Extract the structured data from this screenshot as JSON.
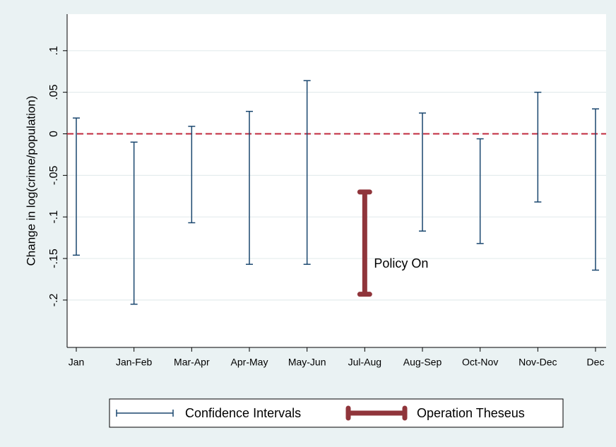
{
  "chart_data": {
    "type": "range",
    "ylabel": "Change in log(crime/population)",
    "categories": [
      "Jan",
      "Jan-Feb",
      "Mar-Apr",
      "Apr-May",
      "May-Jun",
      "Jul-Aug",
      "Aug-Sep",
      "Oct-Nov",
      "Nov-Dec",
      "Dec"
    ],
    "series": [
      {
        "name": "Confidence Intervals",
        "color": "#1a476f",
        "low": [
          -0.146,
          -0.205,
          -0.107,
          -0.157,
          -0.157,
          null,
          -0.117,
          -0.132,
          -0.082,
          -0.164
        ],
        "high": [
          0.019,
          -0.01,
          0.009,
          0.027,
          0.064,
          null,
          0.025,
          -0.006,
          0.05,
          0.03
        ]
      },
      {
        "name": "Operation Theseus",
        "color": "#90353b",
        "low": [
          null,
          null,
          null,
          null,
          null,
          -0.193,
          null,
          null,
          null,
          null
        ],
        "high": [
          null,
          null,
          null,
          null,
          null,
          -0.07,
          null,
          null,
          null,
          null
        ]
      }
    ],
    "annotation": "Policy On",
    "refline": 0,
    "refline_color": "#c0283c",
    "ylim": [
      -0.257,
      0.144
    ],
    "yticks": [
      {
        "value": -0.2,
        "label": "-.2"
      },
      {
        "value": -0.15,
        "label": "-.15"
      },
      {
        "value": -0.1,
        "label": "-.1"
      },
      {
        "value": -0.05,
        "label": "-.05"
      },
      0,
      {
        "value": 0.05,
        "label": ".05"
      },
      {
        "value": 0.1,
        "label": ".1"
      }
    ],
    "grid": true
  }
}
